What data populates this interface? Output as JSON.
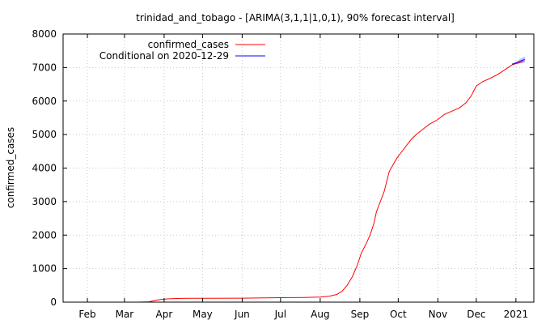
{
  "chart_data": {
    "type": "line",
    "title": "trinidad_and_tobago -  [ARIMA(3,1,1|1,0,1), 90% forecast interval]",
    "xlabel": "",
    "ylabel": "confirmed_cases",
    "ylim": [
      0,
      8000
    ],
    "xlim": [
      "2020-01-13",
      "2021-01-15"
    ],
    "grid": true,
    "legend_position": "top-left",
    "y_ticks": [
      0,
      1000,
      2000,
      3000,
      4000,
      5000,
      6000,
      7000,
      8000
    ],
    "x_ticks": [
      {
        "date": "2020-02-01",
        "label": "Feb"
      },
      {
        "date": "2020-03-01",
        "label": "Mar"
      },
      {
        "date": "2020-04-01",
        "label": "Apr"
      },
      {
        "date": "2020-05-01",
        "label": "May"
      },
      {
        "date": "2020-06-01",
        "label": "Jun"
      },
      {
        "date": "2020-07-01",
        "label": "Jul"
      },
      {
        "date": "2020-08-01",
        "label": "Aug"
      },
      {
        "date": "2020-09-01",
        "label": "Sep"
      },
      {
        "date": "2020-10-01",
        "label": "Oct"
      },
      {
        "date": "2020-11-01",
        "label": "Nov"
      },
      {
        "date": "2020-12-01",
        "label": "Dec"
      },
      {
        "date": "2021-01-01",
        "label": "2021"
      }
    ],
    "series": [
      {
        "name": "confirmed_cases",
        "color": "#ff0000",
        "points": [
          [
            "2020-03-12",
            1
          ],
          [
            "2020-03-20",
            9
          ],
          [
            "2020-03-26",
            60
          ],
          [
            "2020-04-01",
            90
          ],
          [
            "2020-04-10",
            109
          ],
          [
            "2020-04-20",
            114
          ],
          [
            "2020-05-01",
            116
          ],
          [
            "2020-06-01",
            117
          ],
          [
            "2020-07-01",
            133
          ],
          [
            "2020-07-20",
            140
          ],
          [
            "2020-08-01",
            150
          ],
          [
            "2020-08-08",
            175
          ],
          [
            "2020-08-14",
            230
          ],
          [
            "2020-08-18",
            320
          ],
          [
            "2020-08-22",
            500
          ],
          [
            "2020-08-26",
            750
          ],
          [
            "2020-08-30",
            1100
          ],
          [
            "2020-09-02",
            1450
          ],
          [
            "2020-09-06",
            1750
          ],
          [
            "2020-09-09",
            2000
          ],
          [
            "2020-09-12",
            2350
          ],
          [
            "2020-09-14",
            2700
          ],
          [
            "2020-09-17",
            3000
          ],
          [
            "2020-09-20",
            3300
          ],
          [
            "2020-09-22",
            3600
          ],
          [
            "2020-09-24",
            3900
          ],
          [
            "2020-09-27",
            4100
          ],
          [
            "2020-09-30",
            4300
          ],
          [
            "2020-10-03",
            4450
          ],
          [
            "2020-10-07",
            4650
          ],
          [
            "2020-10-11",
            4850
          ],
          [
            "2020-10-15",
            5000
          ],
          [
            "2020-10-20",
            5150
          ],
          [
            "2020-10-25",
            5300
          ],
          [
            "2020-11-01",
            5450
          ],
          [
            "2020-11-06",
            5600
          ],
          [
            "2020-11-12",
            5700
          ],
          [
            "2020-11-18",
            5800
          ],
          [
            "2020-11-23",
            5950
          ],
          [
            "2020-11-27",
            6150
          ],
          [
            "2020-12-01",
            6450
          ],
          [
            "2020-12-06",
            6580
          ],
          [
            "2020-12-12",
            6680
          ],
          [
            "2020-12-18",
            6800
          ],
          [
            "2020-12-24",
            6950
          ],
          [
            "2020-12-29",
            7080
          ],
          [
            "2021-01-04",
            7150
          ],
          [
            "2021-01-07",
            7180
          ]
        ]
      },
      {
        "name": "Conditional on 2020-12-29",
        "color": "#0000ff",
        "band_color": "#a0a0ff",
        "points": [
          [
            "2020-12-29",
            7100
          ],
          [
            "2021-01-02",
            7150
          ],
          [
            "2021-01-05",
            7200
          ],
          [
            "2021-01-08",
            7240
          ]
        ],
        "lower": [
          7100,
          7110,
          7130,
          7150
        ],
        "upper": [
          7100,
          7190,
          7270,
          7330
        ]
      }
    ]
  }
}
